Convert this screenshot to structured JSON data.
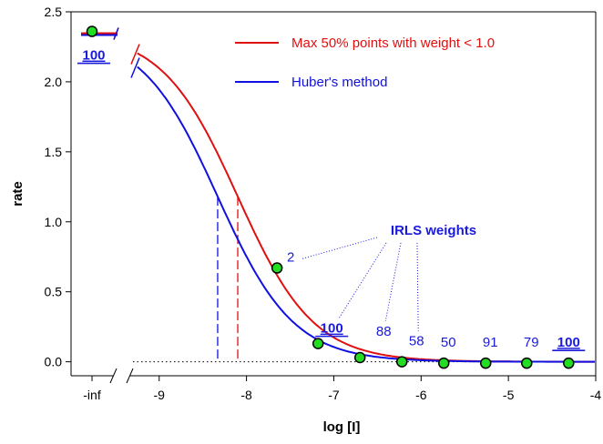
{
  "chart_data": {
    "type": "line",
    "xlabel": "log [I]",
    "ylabel": "rate",
    "xlim": [
      -9.3,
      -4.0
    ],
    "ylim": [
      -0.1,
      2.5
    ],
    "x_ticks": [
      -9,
      -8,
      -7,
      -6,
      -5,
      -4
    ],
    "x_tick_labels": [
      "-9",
      "-8",
      "-7",
      "-6",
      "-5",
      "-4"
    ],
    "inf_tick_label": "-inf",
    "y_ticks": [
      0.0,
      0.5,
      1.0,
      1.5,
      2.0,
      2.5
    ],
    "y_tick_labels": [
      "0.0",
      "0.5",
      "1.0",
      "1.5",
      "2.0",
      "2.5"
    ],
    "baseline": 0.0,
    "legend_position": "top-right",
    "series": [
      {
        "name": "Max 50% points with weight < 1.0",
        "color": "#e01010",
        "top": 2.36,
        "bottom": 0.0,
        "logIC50": -8.1,
        "hill": 1.0
      },
      {
        "name": "Huber's method",
        "color": "#1010e0",
        "top": 2.36,
        "bottom": 0.0,
        "logIC50": -8.33,
        "hill": 1.0
      }
    ],
    "points": [
      {
        "x": "-inf",
        "y": 2.36,
        "weight": "100",
        "emphasis": true
      },
      {
        "x": -7.65,
        "y": 0.67,
        "weight": "2",
        "emphasis": false
      },
      {
        "x": -7.18,
        "y": 0.13,
        "weight": "100",
        "emphasis": true
      },
      {
        "x": -6.7,
        "y": 0.03,
        "weight": "88",
        "emphasis": false
      },
      {
        "x": -6.22,
        "y": 0.0,
        "weight": "58",
        "emphasis": false
      },
      {
        "x": -5.74,
        "y": -0.01,
        "weight": "50",
        "emphasis": false
      },
      {
        "x": -5.26,
        "y": -0.01,
        "weight": "91",
        "emphasis": false
      },
      {
        "x": -4.79,
        "y": -0.01,
        "weight": "79",
        "emphasis": false
      },
      {
        "x": -4.31,
        "y": -0.01,
        "weight": "100",
        "emphasis": true
      }
    ],
    "annotation": {
      "text": "IRLS weights"
    },
    "colors": {
      "point_fill": "#22dd22",
      "point_stroke": "#000000",
      "label": "#1a1adb"
    }
  }
}
